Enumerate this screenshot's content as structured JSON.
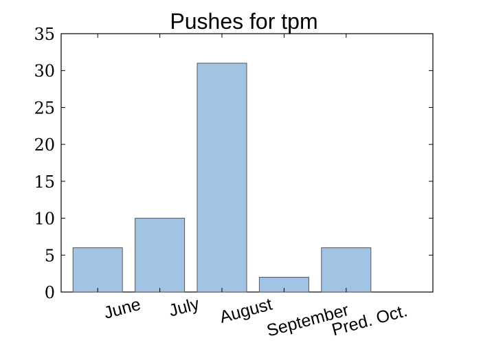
{
  "chart_data": {
    "type": "bar",
    "title": "Pushes for tpm",
    "categories": [
      "June",
      "July",
      "August",
      "September",
      "Pred. Oct."
    ],
    "values": [
      6,
      10,
      31,
      2,
      6
    ],
    "xlabel": "",
    "ylabel": "",
    "ylim": [
      0,
      35
    ],
    "yticks": [
      "0",
      "5",
      "10",
      "15",
      "20",
      "25",
      "30",
      "35"
    ],
    "grid": false,
    "legend": "none",
    "bar_color": "#a3c3e5",
    "bar_edge_color": "#555555"
  }
}
